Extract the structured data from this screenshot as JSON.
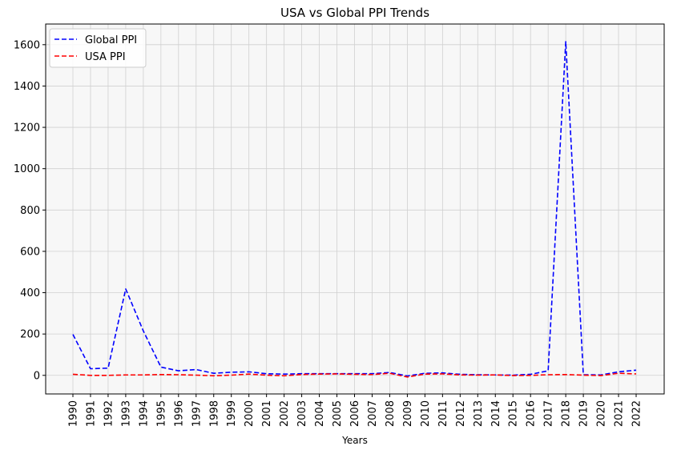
{
  "chart_data": {
    "type": "line",
    "title": "USA vs Global PPI Trends",
    "xlabel": "Years",
    "ylabel": "",
    "x": [
      "1990",
      "1991",
      "1992",
      "1993",
      "1994",
      "1995",
      "1996",
      "1997",
      "1998",
      "1999",
      "2000",
      "2001",
      "2002",
      "2003",
      "2004",
      "2005",
      "2006",
      "2007",
      "2008",
      "2009",
      "2010",
      "2011",
      "2012",
      "2013",
      "2014",
      "2015",
      "2016",
      "2017",
      "2018",
      "2019",
      "2020",
      "2021",
      "2022"
    ],
    "yticks": [
      0,
      200,
      400,
      600,
      800,
      1000,
      1200,
      1400,
      1600
    ],
    "ylim": [
      -90,
      1700
    ],
    "grid": true,
    "legend_position": "top-left",
    "series": [
      {
        "name": "Global PPI",
        "color": "#0000ff",
        "style": "dashed",
        "values": [
          198,
          32,
          35,
          418,
          215,
          40,
          22,
          28,
          10,
          15,
          17,
          8,
          6,
          8,
          8,
          8,
          8,
          8,
          14,
          -3,
          10,
          12,
          5,
          3,
          2,
          1,
          5,
          22,
          1615,
          3,
          2,
          17,
          25
        ]
      },
      {
        "name": "USA PPI",
        "color": "#ff0000",
        "style": "dashed",
        "values": [
          5,
          0,
          0,
          2,
          2,
          4,
          3,
          1,
          -2,
          1,
          6,
          1,
          -2,
          4,
          6,
          7,
          5,
          4,
          10,
          -8,
          6,
          7,
          2,
          1,
          2,
          -1,
          0,
          3,
          4,
          1,
          -1,
          10,
          7
        ]
      }
    ]
  }
}
